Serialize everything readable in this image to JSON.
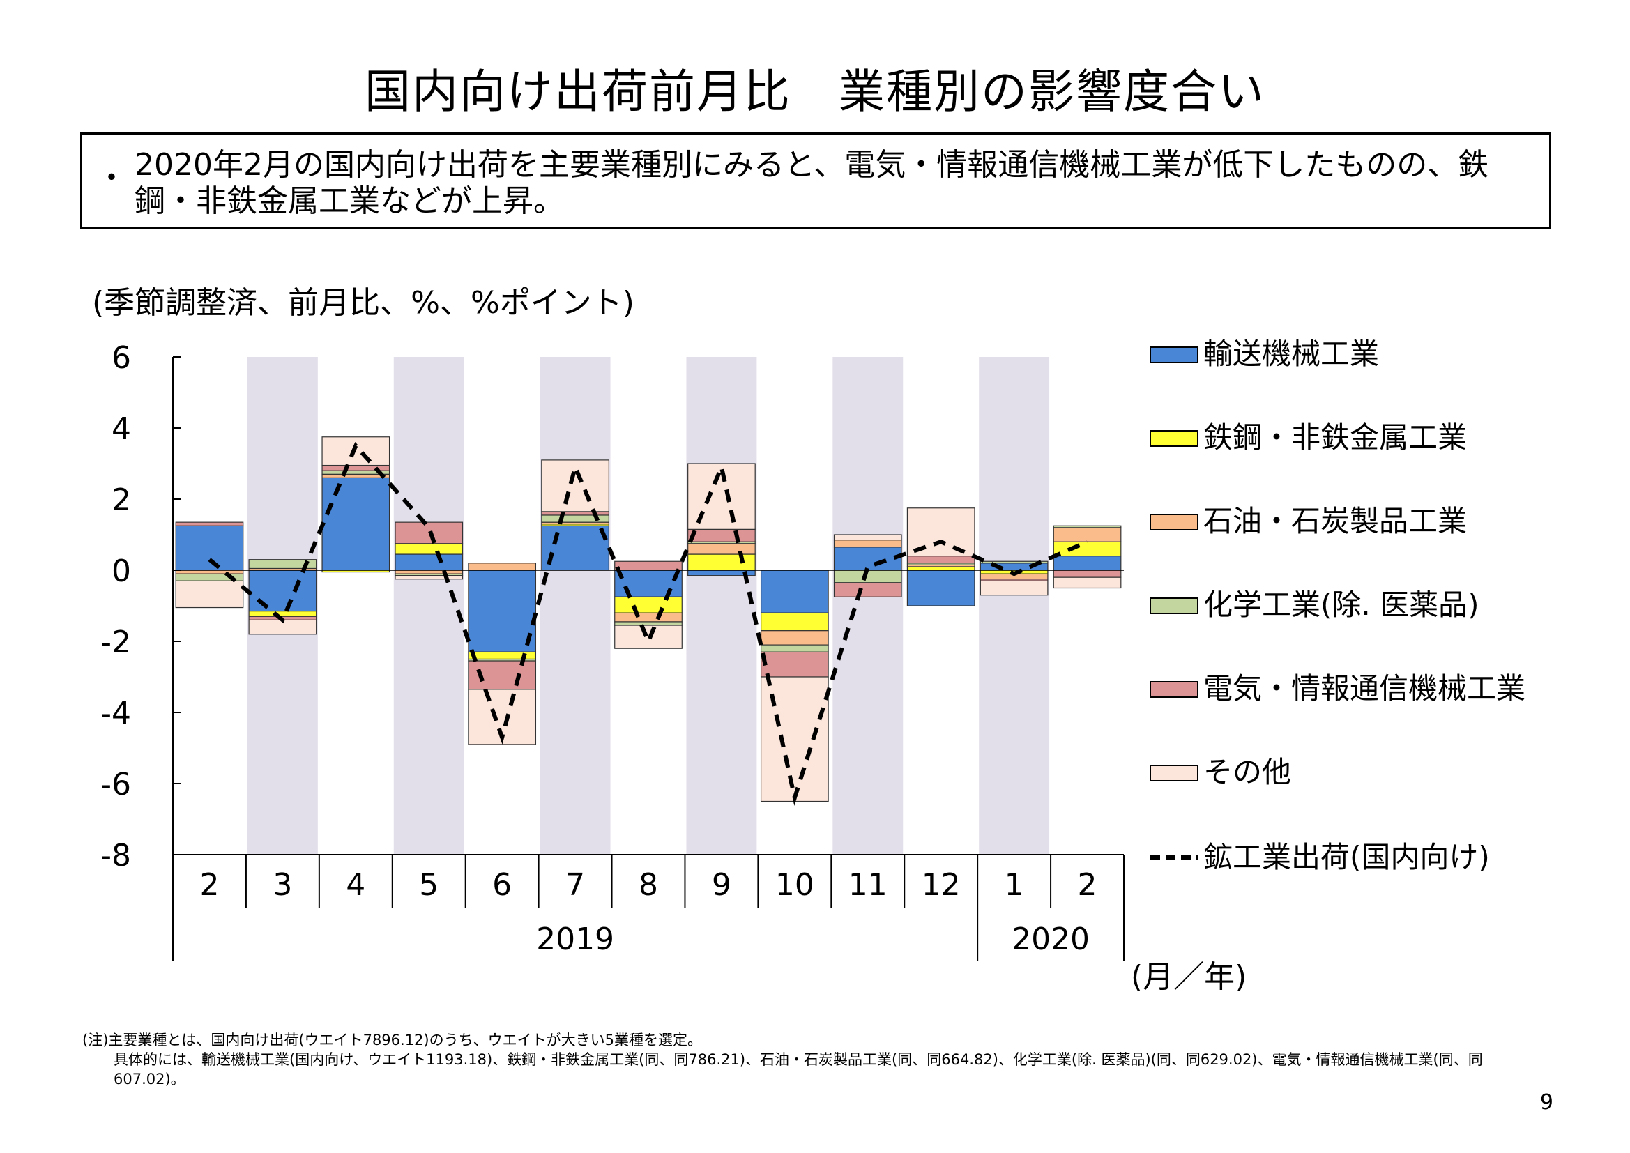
{
  "page": {
    "title": "国内向け出荷前月比　業種別の影響度合い",
    "summary_bullet": "・",
    "summary_text": "2020年2月の国内向け出荷を主要業種別にみると、電気・情報通信機械工業が低下したものの、鉄鋼・非鉄金属工業などが上昇。",
    "unit_note": "(季節調整済、前月比、%、%ポイント)",
    "footnote_line1": "(注)主要業種とは、国内向け出荷(ウエイト7896.12)のうち、ウエイトが大きい5業種を選定。",
    "footnote_line2": "具体的には、輸送機械工業(国内向け、ウエイト1193.18)、鉄鋼・非鉄金属工業(同、同786.21)、石油・石炭製品工業(同、同664.82)、化学工業(除. 医薬品)(同、同629.02)、電気・情報通信機械工業(同、同607.02)。",
    "page_number": "9"
  },
  "chart_data": {
    "type": "bar",
    "stacked": true,
    "ylim": [
      -8,
      6
    ],
    "yticks": [
      "6",
      "4",
      "2",
      "0",
      "-2",
      "-4",
      "-6",
      "-8"
    ],
    "ytick_values": [
      6,
      4,
      2,
      0,
      -2,
      -4,
      -6,
      -8
    ],
    "categories": [
      "2",
      "3",
      "4",
      "5",
      "6",
      "7",
      "8",
      "9",
      "10",
      "11",
      "12",
      "1",
      "2"
    ],
    "years": [
      {
        "label": "2019",
        "from": 0,
        "to": 10
      },
      {
        "label": "2020",
        "from": 11,
        "to": 12
      }
    ],
    "xaxis_unit": "(月／年)",
    "shaded_categories": [
      1,
      3,
      5,
      7,
      9,
      11
    ],
    "colors": {
      "shade": "#e3dfea",
      "transport": "#4a86d6",
      "steel": "#ffff33",
      "petroleum": "#fbbc8c",
      "chemical": "#c3d6a0",
      "electric": "#dc9494",
      "other": "#fce6dc",
      "line": "#000000"
    },
    "series": [
      {
        "key": "transport",
        "name": "輸送機械工業",
        "values": [
          1.25,
          -1.15,
          2.6,
          0.45,
          -2.3,
          1.25,
          -0.75,
          -0.15,
          -1.2,
          0.65,
          -1.0,
          0.2,
          0.4
        ]
      },
      {
        "key": "steel",
        "name": "鉄鋼・非鉄金属工業",
        "values": [
          0.0,
          -0.15,
          -0.05,
          0.3,
          -0.2,
          0.05,
          -0.45,
          0.45,
          -0.5,
          0.0,
          0.1,
          -0.1,
          0.4
        ]
      },
      {
        "key": "petroleum",
        "name": "石油・石炭製品工業",
        "values": [
          -0.1,
          0.05,
          0.1,
          -0.1,
          0.2,
          0.05,
          -0.25,
          0.3,
          -0.4,
          0.2,
          0.05,
          -0.15,
          0.4
        ]
      },
      {
        "key": "chemical",
        "name": "化学工業(除. 医薬品)",
        "values": [
          -0.2,
          0.25,
          0.1,
          -0.05,
          -0.05,
          0.2,
          -0.1,
          0.05,
          -0.2,
          -0.35,
          0.05,
          0.05,
          0.05
        ]
      },
      {
        "key": "electric",
        "name": "電気・情報通信機械工業",
        "values": [
          0.1,
          -0.1,
          0.15,
          0.6,
          -0.8,
          0.1,
          0.25,
          0.35,
          -0.7,
          -0.4,
          0.2,
          -0.05,
          -0.2
        ]
      },
      {
        "key": "other",
        "name": "その他",
        "values": [
          -0.75,
          -0.4,
          0.8,
          -0.1,
          -1.55,
          1.45,
          -0.65,
          1.85,
          -3.5,
          0.15,
          1.35,
          -0.4,
          -0.3
        ]
      }
    ],
    "line": {
      "name": "鉱工業出荷(国内向け)",
      "values": [
        0.3,
        -1.4,
        3.5,
        1.2,
        -4.7,
        2.9,
        -2.0,
        2.9,
        -6.4,
        0.1,
        0.8,
        -0.1,
        0.8
      ]
    }
  }
}
